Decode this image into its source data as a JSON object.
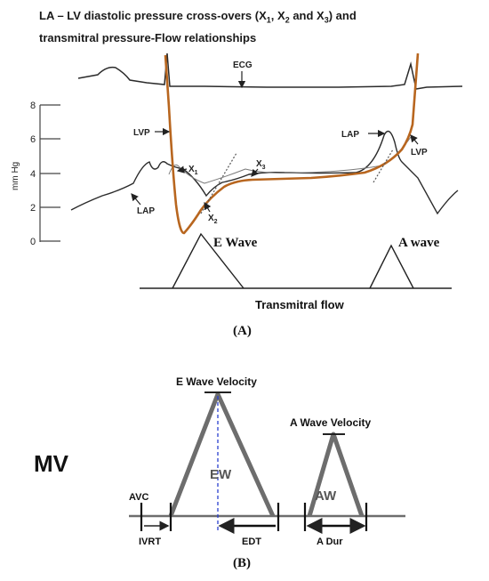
{
  "title": {
    "line1_prefix": "LA – LV diastolic pressure cross-overs (X",
    "sub1": "1",
    "sep1": ", X",
    "sub2": "2",
    "sep2": " and X",
    "sub3": "3",
    "line1_suffix": ") and",
    "line2": "transmitral pressure-Flow relationships"
  },
  "panel_a": {
    "label": "(A)",
    "y_axis_label": "mm Hg",
    "y_ticks": [
      "0",
      "2",
      "4",
      "6",
      "8"
    ],
    "ecg_label": "ECG",
    "lvp_left": "LVP",
    "lap_left": "LAP",
    "x1": "X",
    "x1_sub": "1",
    "x2": "X",
    "x2_sub": "2",
    "x3": "X",
    "x3_sub": "3",
    "lap_right": "LAP",
    "lvp_right": "LVP",
    "e_wave": "E Wave",
    "a_wave": "A wave",
    "flow_label": "Transmitral flow"
  },
  "panel_b": {
    "label": "(B)",
    "mv_label": "MV",
    "e_velocity": "E Wave Velocity",
    "a_velocity": "A Wave Velocity",
    "ew": "EW",
    "aw": "AW",
    "avc": "AVC",
    "ivrt": "IVRT",
    "edt": "EDT",
    "a_dur": "A Dur"
  },
  "colors": {
    "trace": "#2b2b2b",
    "lvp_trace": "#b8661f",
    "gray_shape": "#6d6d6d",
    "dashed_line": "#2a3fd0"
  }
}
